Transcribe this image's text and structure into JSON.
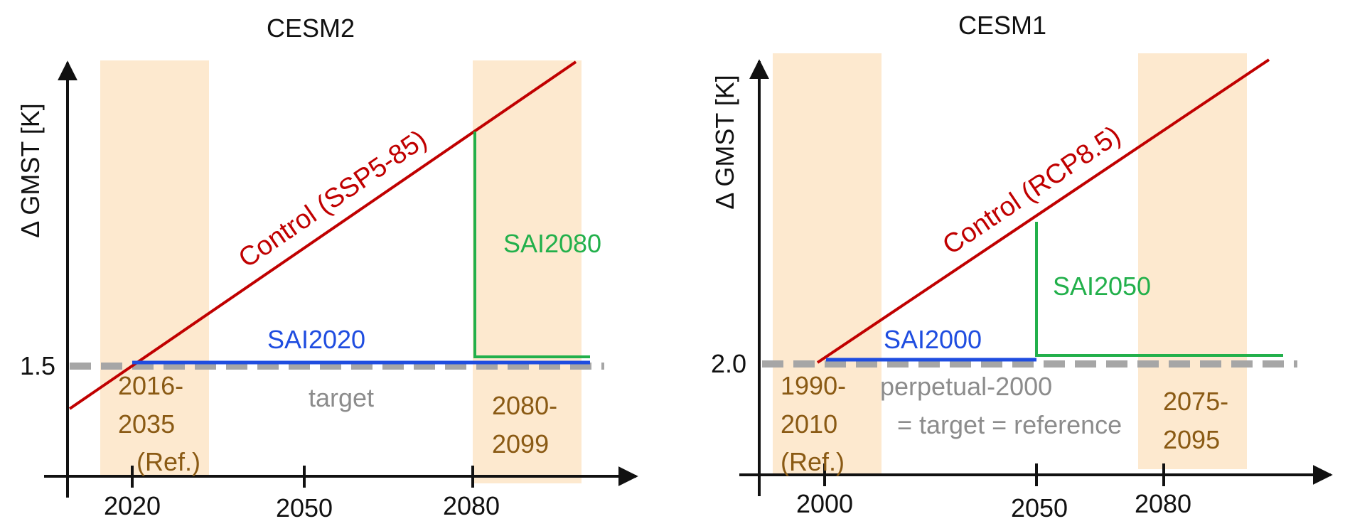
{
  "colors": {
    "control": "#c00000",
    "sai_constant": "#1f4de0",
    "sai_late": "#22b04b",
    "target": "#a6a6a6",
    "period_fill": "#fde9cf",
    "period_text": "#8a5a14",
    "note_text": "#8c8c8c"
  },
  "panels": [
    {
      "title": "CESM2",
      "ylabel": "Δ GMST [K]",
      "x_ticks": [
        "2020",
        "2050",
        "2080"
      ],
      "y_tick": "1.5",
      "control_label": "Control (SSP5-85)",
      "sai_constant_label": "SAI2020",
      "sai_late_label": "SAI2080",
      "target_label": "target",
      "ref_period": [
        "2016-",
        "2035",
        "(Ref.)"
      ],
      "late_period": [
        "2080-",
        "2099"
      ]
    },
    {
      "title": "CESM1",
      "ylabel": "Δ GMST [K]",
      "x_ticks": [
        "2000",
        "2050",
        "2080"
      ],
      "y_tick": "2.0",
      "control_label": "Control (RCP8.5)",
      "sai_constant_label": "SAI2000",
      "sai_late_label": "SAI2050",
      "target_label": [
        "perpetual-2000",
        "= target = reference"
      ],
      "ref_period": [
        "1990-",
        "2010",
        "(Ref.)"
      ],
      "late_period": [
        "2075-",
        "2095"
      ]
    }
  ]
}
